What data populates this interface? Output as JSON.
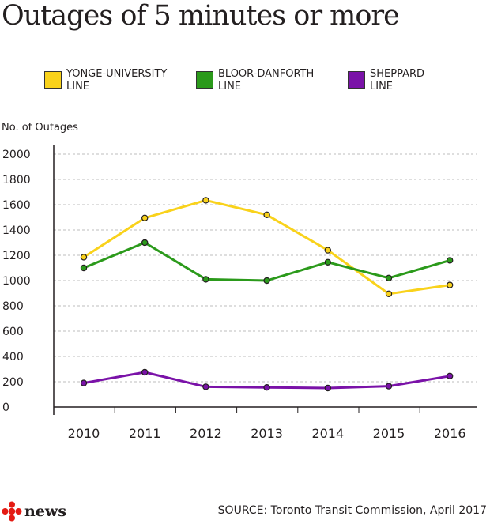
{
  "title": "Outages of 5 minutes or more",
  "legend": [
    {
      "line1": "YONGE-UNIVERSITY",
      "line2": "LINE",
      "color": "#f9d21b"
    },
    {
      "line1": "BLOOR-DANFORTH",
      "line2": "LINE",
      "color": "#2b9a1b"
    },
    {
      "line1": "SHEPPARD",
      "line2": "LINE",
      "color": "#7a12a8"
    }
  ],
  "footer": {
    "logo": "news",
    "source": "SOURCE: Toronto Transit Commission, April 2017"
  },
  "chart_data": {
    "type": "line",
    "title": "Outages of 5 minutes or more",
    "ylabel": "No. of Outages",
    "xlabel": "",
    "categories": [
      "2010",
      "2011",
      "2012",
      "2013",
      "2014",
      "2015",
      "2016"
    ],
    "ylim": [
      0,
      2000
    ],
    "yticks": [
      0,
      200,
      400,
      600,
      800,
      1000,
      1200,
      1400,
      1600,
      1800,
      2000
    ],
    "grid": true,
    "legend_position": "top",
    "series": [
      {
        "name": "YONGE-UNIVERSITY LINE",
        "color": "#f9d21b",
        "values": [
          1185,
          1495,
          1635,
          1520,
          1240,
          895,
          965
        ]
      },
      {
        "name": "BLOOR-DANFORTH LINE",
        "color": "#2b9a1b",
        "values": [
          1100,
          1300,
          1010,
          1000,
          1145,
          1020,
          1160
        ]
      },
      {
        "name": "SHEPPARD LINE",
        "color": "#7a12a8",
        "values": [
          190,
          275,
          160,
          155,
          150,
          165,
          245
        ]
      }
    ]
  }
}
